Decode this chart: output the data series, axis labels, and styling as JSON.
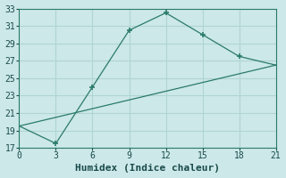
{
  "xlabel": "Humidex (Indice chaleur)",
  "line1_x": [
    0,
    3,
    6,
    9,
    12,
    15,
    18,
    21
  ],
  "line1_y": [
    19.5,
    17.5,
    24.0,
    30.5,
    32.5,
    30.0,
    27.5,
    26.5
  ],
  "line2_x": [
    0,
    21
  ],
  "line2_y": [
    19.5,
    26.5
  ],
  "line_color": "#2a7a6a",
  "bg_color": "#cce8e8",
  "grid_color": "#b0d4d4",
  "xlim": [
    0,
    21
  ],
  "ylim": [
    17,
    33
  ],
  "xticks": [
    0,
    3,
    6,
    9,
    12,
    15,
    18,
    21
  ],
  "yticks": [
    17,
    19,
    21,
    23,
    25,
    27,
    29,
    31,
    33
  ],
  "xlabel_fontsize": 8,
  "tick_fontsize": 7,
  "marker_x": [
    3,
    6,
    9,
    12,
    15,
    18
  ],
  "marker_y": [
    17.5,
    24.0,
    30.5,
    32.5,
    30.0,
    27.5
  ]
}
